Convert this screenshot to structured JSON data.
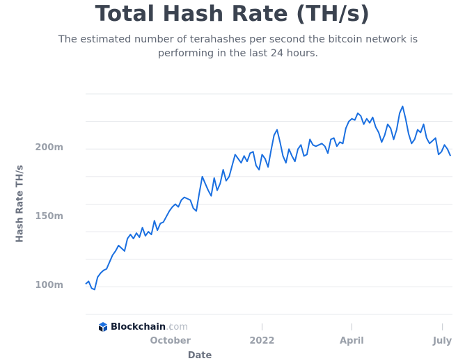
{
  "chart_data": {
    "type": "line",
    "title": "Total Hash Rate (TH/s)",
    "subtitle": "The estimated number of terahashes per second the bitcoin network is performing in the last 24 hours.",
    "xlabel": "Date",
    "ylabel": "Hash Rate TH/s",
    "ylim": [
      80000000,
      240000000
    ],
    "y_ticks": [
      {
        "value": 100000000,
        "label": "100m"
      },
      {
        "value": 150000000,
        "label": "150m"
      },
      {
        "value": 200000000,
        "label": "200m"
      }
    ],
    "x_ticks": [
      {
        "date": "2021-10-01",
        "label": "October"
      },
      {
        "date": "2022-01-01",
        "label": "2022"
      },
      {
        "date": "2022-04-01",
        "label": "April"
      },
      {
        "date": "2022-07-01",
        "label": "July"
      }
    ],
    "xlim": [
      "2021-07-08",
      "2022-07-11"
    ],
    "grid": true,
    "line_color": "#1a6fe0",
    "series": [
      {
        "x": [
          "2021-07-08",
          "2021-07-11",
          "2021-07-14",
          "2021-07-17",
          "2021-07-20",
          "2021-07-23",
          "2021-07-26",
          "2021-07-29",
          "2021-08-01",
          "2021-08-04",
          "2021-08-07",
          "2021-08-10",
          "2021-08-13",
          "2021-08-16",
          "2021-08-19",
          "2021-08-22",
          "2021-08-25",
          "2021-08-28",
          "2021-08-31",
          "2021-09-03",
          "2021-09-06",
          "2021-09-09",
          "2021-09-12",
          "2021-09-15",
          "2021-09-18",
          "2021-09-21",
          "2021-09-24",
          "2021-09-27",
          "2021-09-30",
          "2021-10-03",
          "2021-10-06",
          "2021-10-09",
          "2021-10-12",
          "2021-10-15",
          "2021-10-18",
          "2021-10-21",
          "2021-10-24",
          "2021-10-27",
          "2021-10-30",
          "2021-11-02",
          "2021-11-05",
          "2021-11-08",
          "2021-11-11",
          "2021-11-14",
          "2021-11-17",
          "2021-11-20",
          "2021-11-23",
          "2021-11-26",
          "2021-11-29",
          "2021-12-02",
          "2021-12-05",
          "2021-12-08",
          "2021-12-11",
          "2021-12-14",
          "2021-12-17",
          "2021-12-20",
          "2021-12-23",
          "2021-12-26",
          "2021-12-29",
          "2022-01-01",
          "2022-01-04",
          "2022-01-07",
          "2022-01-10",
          "2022-01-13",
          "2022-01-16",
          "2022-01-19",
          "2022-01-22",
          "2022-01-25",
          "2022-01-28",
          "2022-01-31",
          "2022-02-03",
          "2022-02-06",
          "2022-02-09",
          "2022-02-12",
          "2022-02-15",
          "2022-02-18",
          "2022-02-21",
          "2022-02-24",
          "2022-02-27",
          "2022-03-02",
          "2022-03-05",
          "2022-03-08",
          "2022-03-11",
          "2022-03-14",
          "2022-03-17",
          "2022-03-20",
          "2022-03-23",
          "2022-03-26",
          "2022-03-29",
          "2022-04-01",
          "2022-04-04",
          "2022-04-07",
          "2022-04-10",
          "2022-04-13",
          "2022-04-16",
          "2022-04-19",
          "2022-04-22",
          "2022-04-25",
          "2022-04-28",
          "2022-05-01",
          "2022-05-04",
          "2022-05-07",
          "2022-05-10",
          "2022-05-13",
          "2022-05-16",
          "2022-05-19",
          "2022-05-22",
          "2022-05-25",
          "2022-05-28",
          "2022-05-31",
          "2022-06-03",
          "2022-06-06",
          "2022-06-09",
          "2022-06-12",
          "2022-06-15",
          "2022-06-18",
          "2022-06-21",
          "2022-06-24",
          "2022-06-27",
          "2022-06-30",
          "2022-07-03",
          "2022-07-06",
          "2022-07-09"
        ],
        "values": [
          102000000,
          104000000,
          99000000,
          98000000,
          107000000,
          110000000,
          112000000,
          113000000,
          118000000,
          123000000,
          126000000,
          130000000,
          128000000,
          126000000,
          135000000,
          138000000,
          135000000,
          139000000,
          136000000,
          143000000,
          137000000,
          140000000,
          138000000,
          148000000,
          141000000,
          146000000,
          147000000,
          151000000,
          155000000,
          158000000,
          160000000,
          158000000,
          163000000,
          165000000,
          164000000,
          163000000,
          157000000,
          155000000,
          168000000,
          180000000,
          175000000,
          170000000,
          166000000,
          179000000,
          170000000,
          175000000,
          185000000,
          177000000,
          180000000,
          188000000,
          196000000,
          193000000,
          190000000,
          195000000,
          191000000,
          197000000,
          198000000,
          188000000,
          185000000,
          196000000,
          193000000,
          187000000,
          199000000,
          210000000,
          214000000,
          205000000,
          195000000,
          190000000,
          200000000,
          195000000,
          191000000,
          200000000,
          203000000,
          195000000,
          196000000,
          207000000,
          203000000,
          202000000,
          203000000,
          204000000,
          202000000,
          197000000,
          207000000,
          208000000,
          202000000,
          205000000,
          204000000,
          215000000,
          220000000,
          222000000,
          221000000,
          226000000,
          224000000,
          218000000,
          222000000,
          219000000,
          223000000,
          216000000,
          212000000,
          205000000,
          210000000,
          218000000,
          215000000,
          207000000,
          214000000,
          226000000,
          231000000,
          222000000,
          211000000,
          204000000,
          207000000,
          214000000,
          212000000,
          218000000,
          208000000,
          204000000,
          206000000,
          208000000,
          196000000,
          198000000,
          203000000,
          200000000,
          195000000
        ]
      }
    ]
  },
  "brand": {
    "name": "Blockchain",
    "suffix": ".com"
  }
}
